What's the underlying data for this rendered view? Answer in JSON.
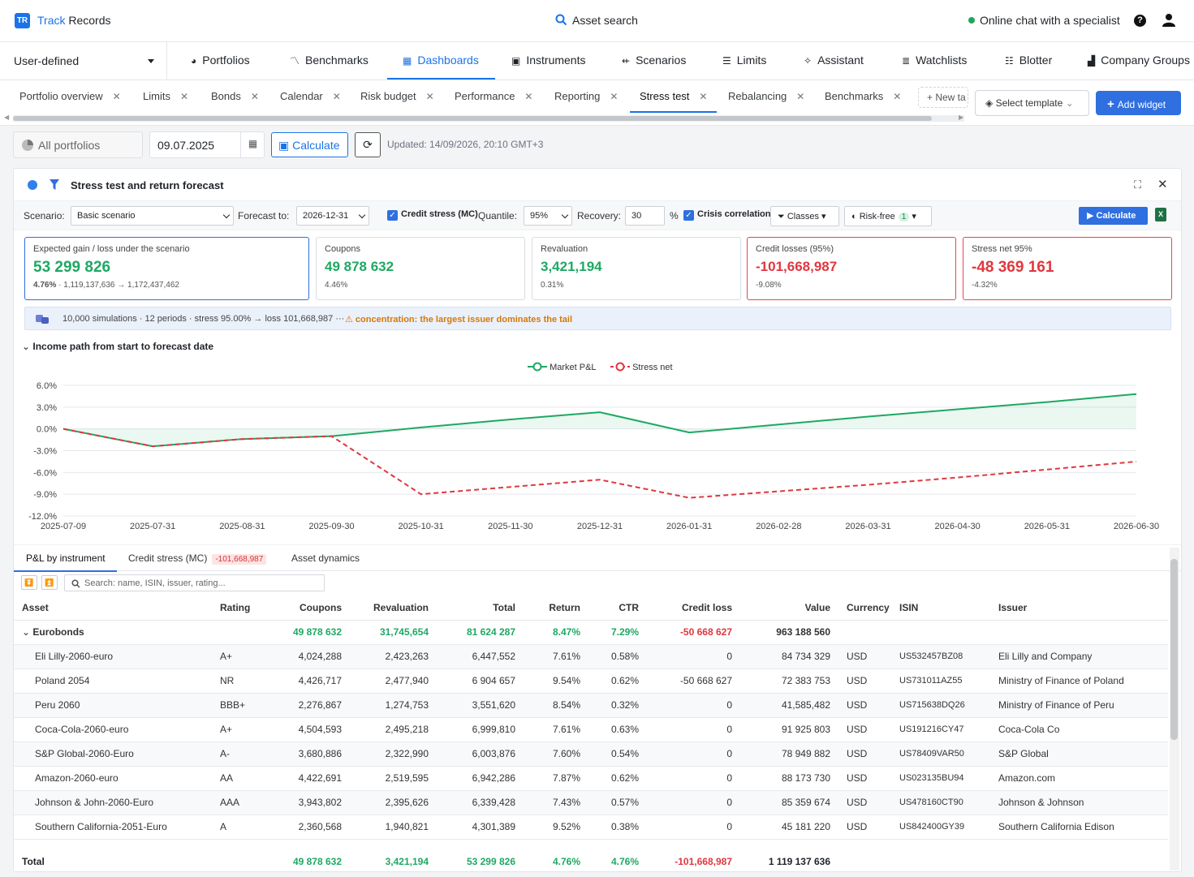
{
  "brand": {
    "logo": "TR",
    "part1": "Track",
    "part2": " Records"
  },
  "topbar": {
    "search_label": "Asset search",
    "chat_label": "Online chat with a specialist",
    "help_label": "?"
  },
  "nav": {
    "selector": "User-defined",
    "items": [
      {
        "label": "Portfolios",
        "icon": "pie-icon"
      },
      {
        "label": "Benchmarks",
        "icon": "chart-icon"
      },
      {
        "label": "Dashboards",
        "icon": "grid-icon"
      },
      {
        "label": "Instruments",
        "icon": "instrument-icon"
      },
      {
        "label": "Scenarios",
        "icon": "branch-icon"
      },
      {
        "label": "Limits",
        "icon": "limits-icon"
      },
      {
        "label": "Assistant",
        "icon": "sparkle-icon"
      },
      {
        "label": "Watchlists",
        "icon": "list-icon"
      },
      {
        "label": "Blotter",
        "icon": "blotter-icon"
      },
      {
        "label": "Company Groups",
        "icon": "building-icon"
      }
    ]
  },
  "tabs": [
    "Portfolio overview",
    "Limits",
    "Bonds",
    "Calendar",
    "Risk budget",
    "Performance",
    "Reporting",
    "Stress test",
    "Rebalancing",
    "Benchmarks"
  ],
  "tab_actions": {
    "new_tab": "+ New ta",
    "select_template": "Select template",
    "add_widget": "Add widget"
  },
  "toolbar": {
    "portfolio": "All portfolios",
    "date": "09.07.2025",
    "calculate": "Calculate",
    "updated": "Updated: 14/09/2026, 20:10 GMT+3"
  },
  "widget": {
    "title": "Stress test and return forecast",
    "params": {
      "scenario_label": "Scenario:",
      "scenario_value": "Basic scenario",
      "forecast_label": "Forecast to:",
      "forecast_value": "2026-12-31",
      "credit_stress": "Credit stress (MC)",
      "quantile_label": "Quantile:",
      "quantile_value": "95%",
      "recovery_label": "Recovery:",
      "recovery_value": "30",
      "recovery_unit": "%",
      "crisis_corr": "Crisis correlation",
      "classes": "Classes",
      "riskfree": "Risk-free",
      "riskfree_count": "1",
      "calculate": "Calculate"
    },
    "cards": [
      {
        "title": "Expected gain / loss under the scenario",
        "value": "53 299 826",
        "sub_bold": "4.76%",
        "sub": " · 1,119,137,636 → 1,172,437,462"
      },
      {
        "title": "Coupons",
        "value": "49 878 632",
        "sub": "4.46%"
      },
      {
        "title": "Revaluation",
        "value": "3,421,194",
        "sub": "0.31%"
      },
      {
        "title": "Credit losses (95%)",
        "value": "-101,668,987",
        "sub": "-9.08%"
      },
      {
        "title": "Stress net 95%",
        "value": "-48 369 161",
        "sub": "-4.32%"
      }
    ],
    "sim_info": "10,000 simulations · 12 periods · stress 95.00% → loss 101,668,987  ···",
    "sim_warning": "⚠ concentration: the largest issuer dominates the tail",
    "section_title": "Income path from start to forecast date"
  },
  "chart_data": {
    "type": "line",
    "x": [
      "2025-07-09",
      "2025-07-31",
      "2025-08-31",
      "2025-09-30",
      "2025-10-31",
      "2025-11-30",
      "2025-12-31",
      "2026-01-31",
      "2026-02-28",
      "2026-03-31",
      "2026-04-30",
      "2026-05-31",
      "2026-06-30"
    ],
    "series": [
      {
        "name": "Market P&L",
        "color": "#1ea863",
        "values": [
          0.0,
          -2.4,
          -1.4,
          -1.0,
          0.2,
          1.3,
          2.3,
          -0.5,
          0.6,
          1.7,
          2.7,
          3.7,
          4.8
        ]
      },
      {
        "name": "Stress net",
        "color": "#e0373f",
        "values": [
          0.0,
          -2.4,
          -1.4,
          -1.0,
          -9.0,
          -8.0,
          -7.0,
          -9.5,
          -8.6,
          -7.7,
          -6.7,
          -5.6,
          -4.5
        ]
      }
    ],
    "yticks": [
      "6.0%",
      "3.0%",
      "0.0%",
      "-3.0%",
      "-6.0%",
      "-9.0%",
      "-12.0%"
    ],
    "ylim": [
      -12,
      6
    ],
    "grid": true,
    "legend": "top-center"
  },
  "subtabs": {
    "t1": "P&L by instrument",
    "t2": "Credit stress (MC)",
    "t2_badge": "-101,668,987",
    "t3": "Asset dynamics"
  },
  "search_placeholder": "Search: name, ISIN, issuer, rating...",
  "table": {
    "headers": [
      "Asset",
      "Rating",
      "Coupons",
      "Revaluation",
      "Total",
      "Return",
      "CTR",
      "Credit loss",
      "Value",
      "Currency",
      "ISIN",
      "Issuer"
    ],
    "group": {
      "name": "Eurobonds",
      "coupons": "49 878 632",
      "reval": "31,745,654",
      "total": "81 624 287",
      "ret": "8.47%",
      "ctr": "7.29%",
      "loss": "-50 668 627",
      "value": "963 188 560"
    },
    "rows": [
      [
        "Eli Lilly-2060-euro",
        "A+",
        "4,024,288",
        "2,423,263",
        "6,447,552",
        "7.61%",
        "0.58%",
        "0",
        "84 734 329",
        "USD",
        "US532457BZ08",
        "Eli Lilly and Company"
      ],
      [
        "Poland 2054",
        "NR",
        "4,426,717",
        "2,477,940",
        "6 904 657",
        "9.54%",
        "0.62%",
        "-50 668 627",
        "72 383 753",
        "USD",
        "US731011AZ55",
        "Ministry of Finance of Poland"
      ],
      [
        "Peru 2060",
        "BBB+",
        "2,276,867",
        "1,274,753",
        "3,551,620",
        "8.54%",
        "0.32%",
        "0",
        "41,585,482",
        "USD",
        "US715638DQ26",
        "Ministry of Finance of Peru"
      ],
      [
        "Coca-Cola-2060-euro",
        "A+",
        "4,504,593",
        "2,495,218",
        "6,999,810",
        "7.61%",
        "0.63%",
        "0",
        "91 925 803",
        "USD",
        "US191216CY47",
        "Coca-Cola Co"
      ],
      [
        "S&P Global-2060-Euro",
        "A-",
        "3,680,886",
        "2,322,990",
        "6,003,876",
        "7.60%",
        "0.54%",
        "0",
        "78 949 882",
        "USD",
        "US78409VAR50",
        "S&P Global"
      ],
      [
        "Amazon-2060-euro",
        "AA",
        "4,422,691",
        "2,519,595",
        "6,942,286",
        "7.87%",
        "0.62%",
        "0",
        "88 173 730",
        "USD",
        "US023135BU94",
        "Amazon.com"
      ],
      [
        "Johnson & John-2060-Euro",
        "AAA",
        "3,943,802",
        "2,395,626",
        "6,339,428",
        "7.43%",
        "0.57%",
        "0",
        "85 359 674",
        "USD",
        "US478160CT90",
        "Johnson & Johnson"
      ],
      [
        "Southern California-2051-Euro",
        "A",
        "2,360,568",
        "1,940,821",
        "4,301,389",
        "9.52%",
        "0.38%",
        "0",
        "45 181 220",
        "USD",
        "US842400GY39",
        "Southern California Edison"
      ]
    ],
    "total": {
      "label": "Total",
      "coupons": "49 878 632",
      "reval": "3,421,194",
      "total": "53 299 826",
      "ret": "4.76%",
      "ctr": "4.76%",
      "loss": "-101,668,987",
      "value": "1 119 137 636"
    }
  }
}
